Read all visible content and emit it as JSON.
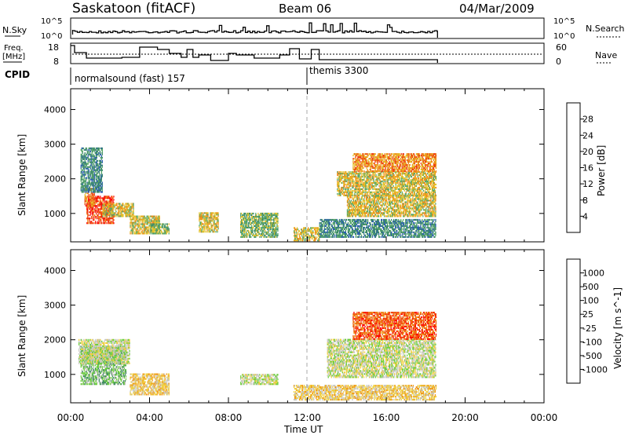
{
  "header": {
    "station": "Saskatoon (fitACF)",
    "beam": "Beam 06",
    "date": "04/Mar/2009"
  },
  "nsky_panel": {
    "left_label": "N.Sky",
    "left_ticks": [
      "10^5",
      "10^0"
    ],
    "right_ticks": [
      "10^5",
      "10^0"
    ],
    "right_label": "N.Search"
  },
  "freq_panel": {
    "left_label_1": "Freq.",
    "left_label_2": "[MHz]",
    "left_ticks": [
      "18",
      "8"
    ],
    "right_ticks": [
      "60",
      "0"
    ],
    "right_label": "Nave"
  },
  "cpid": {
    "label": "CPID",
    "modes": [
      {
        "text": "normalsound (fast) 157",
        "start_hour": 0
      },
      {
        "text": "themis 3300",
        "start_hour": 12
      }
    ]
  },
  "x_axis": {
    "title": "Time UT",
    "ticks": [
      "00:00",
      "04:00",
      "08:00",
      "12:00",
      "16:00",
      "20:00",
      "00:00"
    ],
    "tick_hours": [
      0,
      4,
      8,
      12,
      16,
      20,
      24
    ],
    "range_hours": [
      0,
      24
    ]
  },
  "chart_data": [
    {
      "type": "heatmap",
      "parameter": "power",
      "ylabel": "Slant Range [km]",
      "yticks": [
        1000,
        2000,
        3000,
        4000
      ],
      "ylim": [
        180,
        4600
      ],
      "colorbar": {
        "label": "Power [dB]",
        "ticks": [
          "4",
          "8",
          "12",
          "16",
          "20",
          "24",
          "28"
        ],
        "colors": [
          "#1f28d8",
          "#2b5fb0",
          "#3d8a6a",
          "#5aa86a",
          "#e3c22a",
          "#f08d1c",
          "#ee3a14",
          "#ff0000"
        ]
      },
      "echo_regions": [
        {
          "t": [
            0.8,
            2.2
          ],
          "r": [
            700,
            1500
          ],
          "level": 6
        },
        {
          "t": [
            0.7,
            1.2
          ],
          "r": [
            1200,
            1700
          ],
          "level": 5
        },
        {
          "t": [
            0.5,
            1.6
          ],
          "r": [
            1600,
            2900
          ],
          "level": 2
        },
        {
          "t": [
            1.6,
            3.2
          ],
          "r": [
            900,
            1300
          ],
          "level": 4
        },
        {
          "t": [
            3.0,
            4.5
          ],
          "r": [
            400,
            900
          ],
          "level": 4
        },
        {
          "t": [
            4.0,
            5.0
          ],
          "r": [
            400,
            700
          ],
          "level": 3
        },
        {
          "t": [
            6.5,
            7.5
          ],
          "r": [
            450,
            1000
          ],
          "level": 4
        },
        {
          "t": [
            8.6,
            10.5
          ],
          "r": [
            300,
            1000
          ],
          "level": 3
        },
        {
          "t": [
            11.3,
            12.6
          ],
          "r": [
            200,
            600
          ],
          "level": 4
        },
        {
          "t": [
            12.6,
            18.5
          ],
          "r": [
            300,
            800
          ],
          "level": 2
        },
        {
          "t": [
            13.5,
            18.5
          ],
          "r": [
            1500,
            2200
          ],
          "level": 4
        },
        {
          "t": [
            14.3,
            18.5
          ],
          "r": [
            2200,
            2700
          ],
          "level": 5
        },
        {
          "t": [
            14.0,
            18.5
          ],
          "r": [
            900,
            1500
          ],
          "level": 4
        }
      ]
    },
    {
      "type": "heatmap",
      "parameter": "velocity",
      "ylabel": "Slant Range [km]",
      "yticks": [
        1000,
        2000,
        3000,
        4000
      ],
      "ylim": [
        180,
        4600
      ],
      "colorbar": {
        "label": "Velocity [m s^-1]",
        "ticks": [
          "1000",
          "500",
          "100",
          "25",
          "-25",
          "-100",
          "-500",
          "-1000"
        ],
        "colors": [
          "#1f3fd0",
          "#2f62b8",
          "#3f8a62",
          "#6fcf3f",
          "#c8c8c0",
          "#f0d040",
          "#f09a1c",
          "#ee5a14",
          "#ff0000"
        ]
      },
      "echo_regions": [
        {
          "t": [
            0.5,
            2.8
          ],
          "r": [
            700,
            1800
          ],
          "level": 3
        },
        {
          "t": [
            0.4,
            3.0
          ],
          "r": [
            1300,
            2000
          ],
          "level": 4
        },
        {
          "t": [
            3.0,
            5.0
          ],
          "r": [
            400,
            1000
          ],
          "level": 5
        },
        {
          "t": [
            8.6,
            10.5
          ],
          "r": [
            700,
            1000
          ],
          "level": 4
        },
        {
          "t": [
            11.3,
            18.5
          ],
          "r": [
            250,
            700
          ],
          "level": 5
        },
        {
          "t": [
            13.0,
            18.5
          ],
          "r": [
            900,
            2000
          ],
          "level": 4
        },
        {
          "t": [
            14.3,
            18.5
          ],
          "r": [
            2000,
            2800
          ],
          "level": 7
        }
      ]
    }
  ]
}
